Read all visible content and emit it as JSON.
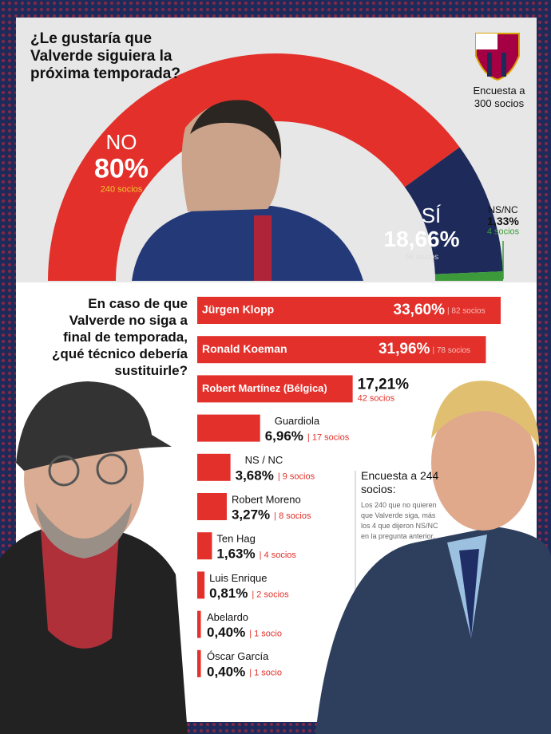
{
  "chart_data": [
    {
      "type": "pie",
      "title": "¿Le gustaría que Valverde siguiera la próxima temporada?",
      "categories": [
        "NO",
        "SÍ",
        "NS/NC"
      ],
      "values": [
        80,
        18.66,
        1.33
      ],
      "value_labels": [
        "80%",
        "18,66%",
        "1,33%"
      ],
      "sublabels": [
        "240 socios",
        "56 socios",
        "4 socios"
      ],
      "colors": [
        "#e3302a",
        "#1d2a5a",
        "#3c9a3a"
      ],
      "note": "Encuesta a 300 socios"
    },
    {
      "type": "barh",
      "title": "En caso de que Valverde no siga a final de temporada, ¿qué técnico debería sustituirle?",
      "categories": [
        "Jürgen Klopp",
        "Ronald Koeman",
        "Robert Martínez (Bélgica)",
        "Guardiola",
        "NS / NC",
        "Robert Moreno",
        "Ten Hag",
        "Luis Enrique",
        "Abelardo",
        "Óscar García"
      ],
      "values": [
        33.6,
        31.96,
        17.21,
        6.96,
        3.68,
        3.27,
        1.63,
        0.81,
        0.4,
        0.4
      ],
      "value_labels": [
        "33,60%",
        "31,96%",
        "17,21%",
        "6,96%",
        "3,68%",
        "3,27%",
        "1,63%",
        "0,81%",
        "0,40%",
        "0,40%"
      ],
      "sublabels": [
        "| 82 socios",
        "| 78 socios",
        "42 socios",
        "| 17 socios",
        "| 9 socios",
        "| 8 socios",
        "| 4 socios",
        "| 2 socios",
        "| 1 socio",
        "| 1 socio"
      ],
      "color": "#e3302a",
      "note_title": "Encuesta a 244 socios:",
      "note": "Los 240 que no quieren que Valverde siga, más los 4 que dijeron NS/NC en la pregunta anterior."
    }
  ]
}
